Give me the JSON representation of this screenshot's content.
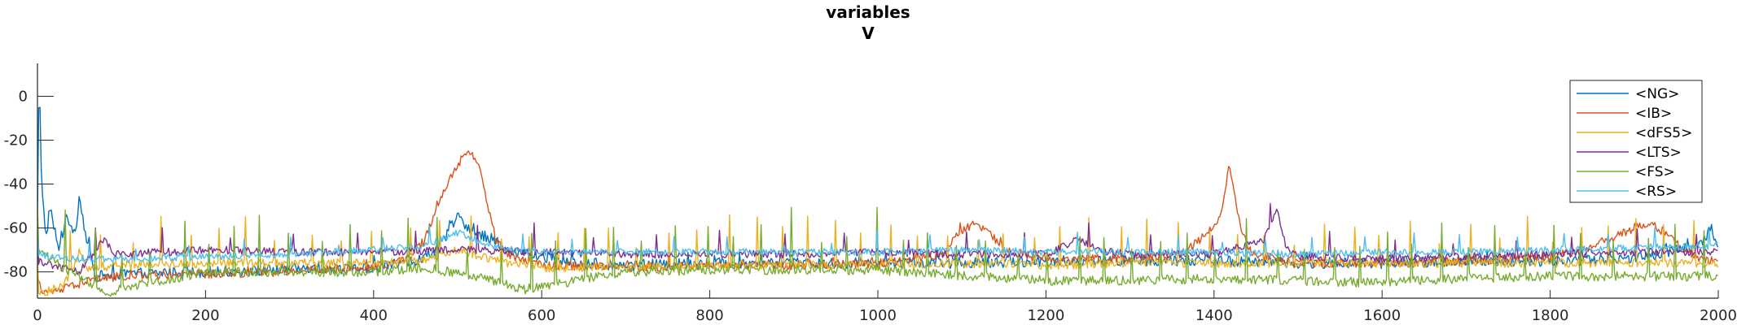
{
  "chart_data": {
    "type": "line",
    "title": [
      "variables",
      "V"
    ],
    "xlabel": "",
    "ylabel": "",
    "xlim": [
      0,
      2000
    ],
    "ylim": [
      -92,
      15
    ],
    "xticks": [
      0,
      200,
      400,
      600,
      800,
      1000,
      1200,
      1400,
      1600,
      1800,
      2000
    ],
    "yticks": [
      0,
      -20,
      -40,
      -60,
      -80
    ],
    "grid": false,
    "legend_position": "top-right",
    "series": [
      {
        "name": "<NG>",
        "color": "#0072BD",
        "base": -79.0,
        "noise": 2.5,
        "spike_every": 33,
        "spike_height": 3,
        "points": [
          [
            0,
            -60
          ],
          [
            2,
            14
          ],
          [
            5,
            -40
          ],
          [
            10,
            -65
          ],
          [
            15,
            -50
          ],
          [
            25,
            -70
          ],
          [
            35,
            -55
          ],
          [
            45,
            -62
          ],
          [
            50,
            -45
          ],
          [
            58,
            -65
          ],
          [
            70,
            -82
          ],
          [
            100,
            -81
          ],
          [
            200,
            -80
          ],
          [
            300,
            -79
          ],
          [
            400,
            -78
          ],
          [
            460,
            -74
          ],
          [
            480,
            -68
          ],
          [
            500,
            -55
          ],
          [
            520,
            -62
          ],
          [
            540,
            -65
          ],
          [
            560,
            -70
          ],
          [
            600,
            -73
          ],
          [
            640,
            -76
          ],
          [
            700,
            -77
          ],
          [
            800,
            -76
          ],
          [
            900,
            -76
          ],
          [
            1000,
            -76
          ],
          [
            1100,
            -76
          ],
          [
            1200,
            -75
          ],
          [
            1300,
            -75
          ],
          [
            1400,
            -75
          ],
          [
            1500,
            -76
          ],
          [
            1600,
            -76
          ],
          [
            1700,
            -75
          ],
          [
            1800,
            -75
          ],
          [
            1900,
            -74
          ],
          [
            1950,
            -70
          ],
          [
            1980,
            -68
          ],
          [
            1990,
            -60
          ],
          [
            2000,
            -70
          ]
        ]
      },
      {
        "name": "<IB>",
        "color": "#D95319",
        "base": -79.0,
        "noise": 2.0,
        "spike_every": 60,
        "spike_height": 2,
        "points": [
          [
            0,
            -85
          ],
          [
            10,
            -90
          ],
          [
            30,
            -88
          ],
          [
            60,
            -84
          ],
          [
            100,
            -82
          ],
          [
            200,
            -81
          ],
          [
            300,
            -80
          ],
          [
            400,
            -78
          ],
          [
            440,
            -74
          ],
          [
            460,
            -66
          ],
          [
            475,
            -50
          ],
          [
            490,
            -38
          ],
          [
            505,
            -28
          ],
          [
            515,
            -25
          ],
          [
            525,
            -30
          ],
          [
            535,
            -48
          ],
          [
            545,
            -65
          ],
          [
            560,
            -72
          ],
          [
            600,
            -77
          ],
          [
            700,
            -78
          ],
          [
            800,
            -77
          ],
          [
            900,
            -77
          ],
          [
            1000,
            -76
          ],
          [
            1080,
            -72
          ],
          [
            1095,
            -62
          ],
          [
            1115,
            -58
          ],
          [
            1135,
            -63
          ],
          [
            1150,
            -70
          ],
          [
            1200,
            -74
          ],
          [
            1300,
            -74
          ],
          [
            1360,
            -72
          ],
          [
            1380,
            -66
          ],
          [
            1400,
            -60
          ],
          [
            1410,
            -50
          ],
          [
            1418,
            -30
          ],
          [
            1425,
            -45
          ],
          [
            1432,
            -62
          ],
          [
            1445,
            -72
          ],
          [
            1500,
            -76
          ],
          [
            1600,
            -76
          ],
          [
            1700,
            -75
          ],
          [
            1800,
            -73
          ],
          [
            1840,
            -70
          ],
          [
            1870,
            -65
          ],
          [
            1900,
            -60
          ],
          [
            1920,
            -58
          ],
          [
            1940,
            -63
          ],
          [
            1960,
            -70
          ],
          [
            1980,
            -74
          ],
          [
            2000,
            -75
          ]
        ]
      },
      {
        "name": "<dFS5>",
        "color": "#EDB120",
        "base": -78.0,
        "noise": 2.0,
        "spike_every": 40,
        "spike_height": 16,
        "points": [
          [
            0,
            -90
          ],
          [
            30,
            -87
          ],
          [
            40,
            -80
          ],
          [
            50,
            -70
          ],
          [
            60,
            -78
          ],
          [
            100,
            -77
          ],
          [
            200,
            -76
          ],
          [
            300,
            -76
          ],
          [
            400,
            -76
          ],
          [
            460,
            -75
          ],
          [
            480,
            -72
          ],
          [
            500,
            -70
          ],
          [
            520,
            -72
          ],
          [
            560,
            -76
          ],
          [
            600,
            -78
          ],
          [
            700,
            -78
          ],
          [
            800,
            -77
          ],
          [
            900,
            -77
          ],
          [
            1000,
            -77
          ],
          [
            1100,
            -76
          ],
          [
            1200,
            -77
          ],
          [
            1300,
            -76
          ],
          [
            1400,
            -76
          ],
          [
            1500,
            -76
          ],
          [
            1600,
            -76
          ],
          [
            1700,
            -76
          ],
          [
            1800,
            -76
          ],
          [
            1900,
            -76
          ],
          [
            2000,
            -76
          ]
        ]
      },
      {
        "name": "<LTS>",
        "color": "#7E2F8E",
        "base": -71.5,
        "noise": 1.8,
        "spike_every": 90,
        "spike_height": 10,
        "points": [
          [
            0,
            -75
          ],
          [
            50,
            -80
          ],
          [
            65,
            -72
          ],
          [
            80,
            -65
          ],
          [
            90,
            -72
          ],
          [
            100,
            -72
          ],
          [
            200,
            -70
          ],
          [
            300,
            -71
          ],
          [
            400,
            -71
          ],
          [
            500,
            -70
          ],
          [
            600,
            -71
          ],
          [
            700,
            -72
          ],
          [
            800,
            -72
          ],
          [
            900,
            -72
          ],
          [
            1000,
            -71
          ],
          [
            1100,
            -72
          ],
          [
            1200,
            -72
          ],
          [
            1240,
            -65
          ],
          [
            1260,
            -70
          ],
          [
            1300,
            -72
          ],
          [
            1400,
            -72
          ],
          [
            1460,
            -65
          ],
          [
            1475,
            -52
          ],
          [
            1485,
            -68
          ],
          [
            1500,
            -73
          ],
          [
            1600,
            -74
          ],
          [
            1700,
            -73
          ],
          [
            1800,
            -72
          ],
          [
            1900,
            -71
          ],
          [
            2000,
            -71
          ]
        ]
      },
      {
        "name": "<FS>",
        "color": "#77AC30",
        "base": -82.0,
        "noise": 2.2,
        "spike_every": 38,
        "spike_height": 20,
        "points": [
          [
            0,
            -70
          ],
          [
            30,
            -78
          ],
          [
            60,
            -85
          ],
          [
            80,
            -90
          ],
          [
            120,
            -86
          ],
          [
            200,
            -80
          ],
          [
            300,
            -80
          ],
          [
            400,
            -80
          ],
          [
            460,
            -78
          ],
          [
            520,
            -82
          ],
          [
            580,
            -88
          ],
          [
            640,
            -84
          ],
          [
            700,
            -80
          ],
          [
            800,
            -79
          ],
          [
            900,
            -79
          ],
          [
            1000,
            -79
          ],
          [
            1100,
            -82
          ],
          [
            1200,
            -84
          ],
          [
            1300,
            -84
          ],
          [
            1400,
            -83
          ],
          [
            1500,
            -84
          ],
          [
            1600,
            -85
          ],
          [
            1700,
            -83
          ],
          [
            1800,
            -82
          ],
          [
            1900,
            -82
          ],
          [
            2000,
            -82
          ]
        ]
      },
      {
        "name": "<RS>",
        "color": "#4DBEEE",
        "base": -71.0,
        "noise": 1.6,
        "spike_every": 70,
        "spike_height": 6,
        "points": [
          [
            0,
            -72
          ],
          [
            40,
            -74
          ],
          [
            100,
            -74
          ],
          [
            200,
            -73
          ],
          [
            300,
            -72
          ],
          [
            400,
            -70
          ],
          [
            460,
            -68
          ],
          [
            500,
            -62
          ],
          [
            520,
            -66
          ],
          [
            560,
            -70
          ],
          [
            600,
            -71
          ],
          [
            700,
            -71
          ],
          [
            800,
            -71
          ],
          [
            900,
            -71
          ],
          [
            1000,
            -71
          ],
          [
            1100,
            -70
          ],
          [
            1200,
            -71
          ],
          [
            1300,
            -71
          ],
          [
            1400,
            -71
          ],
          [
            1500,
            -72
          ],
          [
            1600,
            -71
          ],
          [
            1700,
            -71
          ],
          [
            1800,
            -70
          ],
          [
            1900,
            -69
          ],
          [
            2000,
            -68
          ]
        ]
      }
    ]
  }
}
